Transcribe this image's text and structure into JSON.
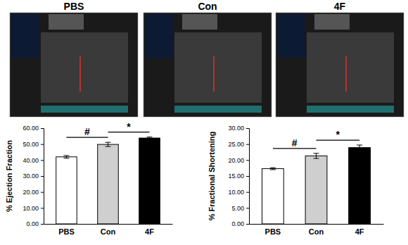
{
  "images": {
    "titles": [
      "PBS",
      "Con",
      "4F"
    ]
  },
  "chart_data": [
    {
      "type": "bar",
      "y_label": "% Ejection Fraction",
      "categories": [
        "PBS",
        "Con",
        "4F"
      ],
      "values": [
        42.0,
        49.8,
        53.8
      ],
      "errors": [
        0.8,
        1.3,
        0.6
      ],
      "colors": [
        "#ffffff",
        "#cfcfcf",
        "#000000"
      ],
      "ylim": [
        0,
        60
      ],
      "yticks": [
        {
          "value": 0,
          "label": "0.00"
        },
        {
          "value": 10,
          "label": "10.00"
        },
        {
          "value": 20,
          "label": "20.00"
        },
        {
          "value": 30,
          "label": "30.00"
        },
        {
          "value": 40,
          "label": "40.00"
        },
        {
          "value": 50,
          "label": "50.00"
        },
        {
          "value": 60,
          "label": "60.00"
        }
      ],
      "annotations": [
        {
          "text": "#",
          "from": 0,
          "to": 1
        },
        {
          "text": "*",
          "from": 1,
          "to": 2
        }
      ]
    },
    {
      "type": "bar",
      "y_label": "% Fractional Shortening",
      "categories": [
        "PBS",
        "Con",
        "4F"
      ],
      "values": [
        17.3,
        21.3,
        23.9
      ],
      "errors": [
        0.3,
        0.8,
        0.8
      ],
      "colors": [
        "#ffffff",
        "#cfcfcf",
        "#000000"
      ],
      "ylim": [
        0,
        30
      ],
      "yticks": [
        {
          "value": 0,
          "label": "0.00"
        },
        {
          "value": 5,
          "label": "5.00"
        },
        {
          "value": 10,
          "label": "10.00"
        },
        {
          "value": 15,
          "label": "15.00"
        },
        {
          "value": 20,
          "label": "20.00"
        },
        {
          "value": 25,
          "label": "25.00"
        },
        {
          "value": 30,
          "label": "30.00"
        }
      ],
      "annotations": [
        {
          "text": "#",
          "from": 0,
          "to": 1
        },
        {
          "text": "*",
          "from": 1,
          "to": 2
        }
      ]
    }
  ]
}
